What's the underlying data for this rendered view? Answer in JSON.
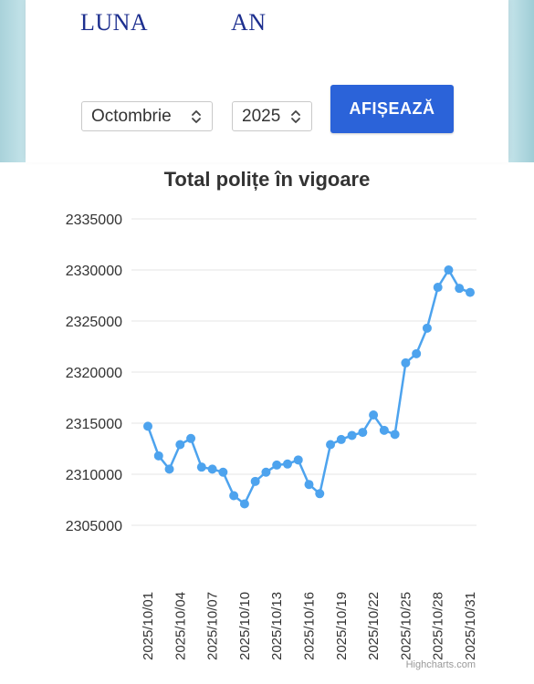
{
  "filters": {
    "month_label": "LUNA",
    "year_label": "AN",
    "month_value": "Octombrie",
    "year_value": "2025",
    "submit_label": "AFIȘEAZĂ"
  },
  "credits": "Highcharts.com",
  "colors": {
    "series": "#4da3ee",
    "button": "#2b63d9",
    "label_blue": "#1d2f8f"
  },
  "chart_data": {
    "type": "line",
    "title": "Total polițe în vigoare",
    "xlabel": "",
    "ylabel": "",
    "ylim": [
      2305000,
      2335000
    ],
    "yticks": [
      2305000,
      2310000,
      2315000,
      2320000,
      2325000,
      2330000,
      2335000
    ],
    "ytick_labels": [
      "2305000",
      "2310000",
      "2315000",
      "2320000",
      "2325000",
      "2330000",
      "2335000"
    ],
    "x": [
      "2025/10/01",
      "2025/10/02",
      "2025/10/03",
      "2025/10/04",
      "2025/10/05",
      "2025/10/06",
      "2025/10/07",
      "2025/10/08",
      "2025/10/09",
      "2025/10/10",
      "2025/10/11",
      "2025/10/12",
      "2025/10/13",
      "2025/10/14",
      "2025/10/15",
      "2025/10/16",
      "2025/10/17",
      "2025/10/18",
      "2025/10/19",
      "2025/10/20",
      "2025/10/21",
      "2025/10/22",
      "2025/10/23",
      "2025/10/24",
      "2025/10/25",
      "2025/10/26",
      "2025/10/27",
      "2025/10/28",
      "2025/10/29",
      "2025/10/30",
      "2025/10/31"
    ],
    "xtick_labels": [
      "2025/10/01",
      "2025/10/04",
      "2025/10/07",
      "2025/10/10",
      "2025/10/13",
      "2025/10/16",
      "2025/10/19",
      "2025/10/22",
      "2025/10/25",
      "2025/10/28",
      "2025/10/31"
    ],
    "grid": true,
    "series": [
      {
        "values": [
          2314700,
          2311800,
          2310500,
          2312900,
          2313500,
          2310700,
          2310500,
          2310200,
          2307900,
          2307100,
          2309300,
          2310200,
          2310900,
          2311000,
          2311400,
          2309000,
          2308100,
          2312900,
          2313400,
          2313800,
          2314100,
          2315800,
          2314300,
          2313900,
          2320900,
          2321800,
          2324300,
          2328300,
          2330000,
          2328200,
          2327800
        ]
      }
    ]
  }
}
